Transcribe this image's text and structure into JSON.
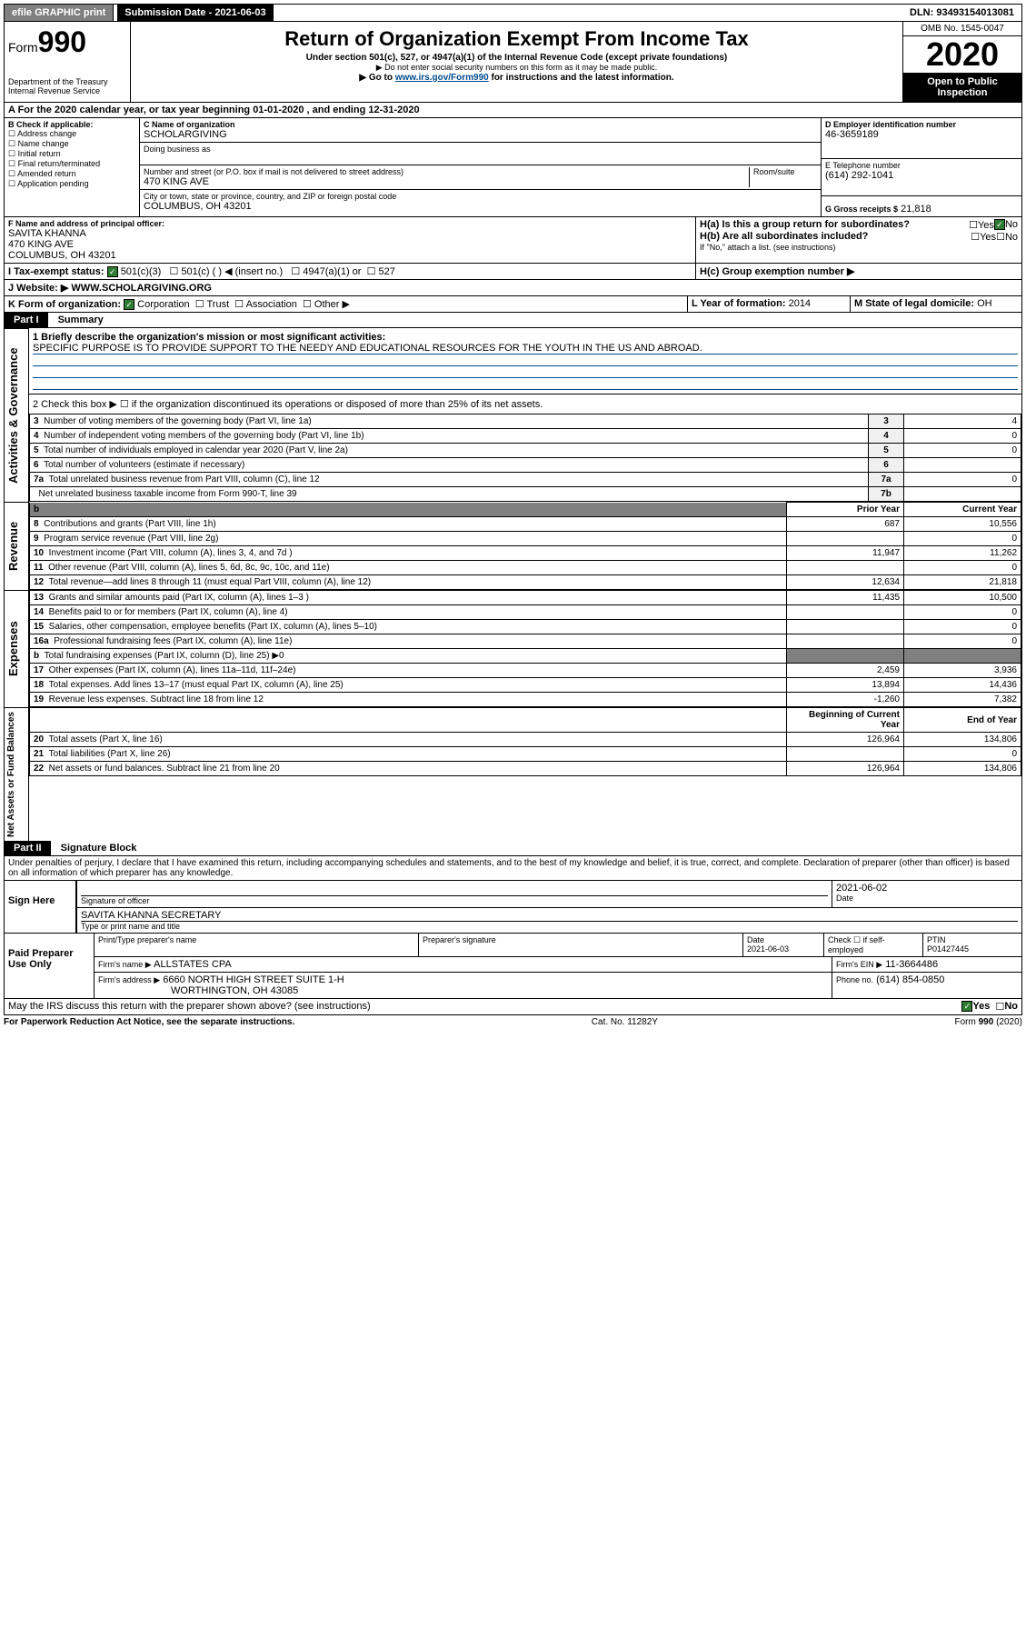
{
  "topbar": {
    "efile": "efile GRAPHIC print",
    "sub_label": "Submission Date - 2021-06-03",
    "dln": "DLN: 93493154013081"
  },
  "header": {
    "form_label": "Form",
    "form_num": "990",
    "dept": "Department of the Treasury Internal Revenue Service",
    "title": "Return of Organization Exempt From Income Tax",
    "sub1": "Under section 501(c), 527, or 4947(a)(1) of the Internal Revenue Code (except private foundations)",
    "sub2": "▶ Do not enter social security numbers on this form as it may be made public.",
    "sub3_pre": "▶ Go to ",
    "sub3_link": "www.irs.gov/Form990",
    "sub3_post": " for instructions and the latest information.",
    "omb": "OMB No. 1545-0047",
    "year": "2020",
    "open": "Open to Public Inspection"
  },
  "a_line": "A For the 2020 calendar year, or tax year beginning 01-01-2020    , and ending 12-31-2020",
  "b": {
    "label": "B Check if applicable:",
    "opts": [
      "Address change",
      "Name change",
      "Initial return",
      "Final return/terminated",
      "Amended return",
      "Application pending"
    ]
  },
  "c": {
    "name_label": "C Name of organization",
    "name": "SCHOLARGIVING",
    "dba_label": "Doing business as",
    "addr_label": "Number and street (or P.O. box if mail is not delivered to street address)",
    "room_label": "Room/suite",
    "addr": "470 KING AVE",
    "city_label": "City or town, state or province, country, and ZIP or foreign postal code",
    "city": "COLUMBUS, OH  43201"
  },
  "d": {
    "label": "D Employer identification number",
    "val": "46-3659189"
  },
  "e": {
    "label": "E Telephone number",
    "val": "(614) 292-1041"
  },
  "g": {
    "label": "G Gross receipts $",
    "val": "21,818"
  },
  "f": {
    "label": "F  Name and address of principal officer:",
    "name": "SAVITA KHANNA",
    "addr1": "470 KING AVE",
    "addr2": "COLUMBUS, OH  43201"
  },
  "h": {
    "a_label": "H(a)  Is this a group return for subordinates?",
    "b_label": "H(b)  Are all subordinates included?",
    "note": "If \"No,\" attach a list. (see instructions)",
    "c_label": "H(c)  Group exemption number ▶",
    "yes": "Yes",
    "no": "No"
  },
  "i": {
    "label": "I  Tax-exempt status:",
    "o1": "501(c)(3)",
    "o2": "501(c) (   ) ◀ (insert no.)",
    "o3": "4947(a)(1) or",
    "o4": "527"
  },
  "j": {
    "label": "J   Website: ▶",
    "val": "WWW.SCHOLARGIVING.ORG"
  },
  "k": {
    "label": "K Form of organization:",
    "opts": [
      "Corporation",
      "Trust",
      "Association",
      "Other ▶"
    ]
  },
  "l": {
    "label": "L Year of formation:",
    "val": "2014"
  },
  "m": {
    "label": "M State of legal domicile:",
    "val": "OH"
  },
  "part1": {
    "label": "Part I",
    "title": "Summary"
  },
  "summary": {
    "q1": "1  Briefly describe the organization's mission or most significant activities:",
    "q1_ans": "SPECIFIC PURPOSE IS TO PROVIDE SUPPORT TO THE NEEDY AND EDUCATIONAL RESOURCES FOR THE YOUTH IN THE US AND ABROAD.",
    "q2": "2  Check this box ▶ ☐  if the organization discontinued its operations or disposed of more than 25% of its net assets.",
    "rows_gov": [
      {
        "n": "3",
        "desc": "Number of voting members of the governing body (Part VI, line 1a)",
        "k": "3",
        "v": "4"
      },
      {
        "n": "4",
        "desc": "Number of independent voting members of the governing body (Part VI, line 1b)",
        "k": "4",
        "v": "0"
      },
      {
        "n": "5",
        "desc": "Total number of individuals employed in calendar year 2020 (Part V, line 2a)",
        "k": "5",
        "v": "0"
      },
      {
        "n": "6",
        "desc": "Total number of volunteers (estimate if necessary)",
        "k": "6",
        "v": ""
      },
      {
        "n": "7a",
        "desc": "Total unrelated business revenue from Part VIII, column (C), line 12",
        "k": "7a",
        "v": "0"
      },
      {
        "n": "",
        "desc": "Net unrelated business taxable income from Form 990-T, line 39",
        "k": "7b",
        "v": ""
      }
    ],
    "hdr_prior": "Prior Year",
    "hdr_curr": "Current Year",
    "rows_rev": [
      {
        "n": "8",
        "desc": "Contributions and grants (Part VIII, line 1h)",
        "p": "687",
        "c": "10,556"
      },
      {
        "n": "9",
        "desc": "Program service revenue (Part VIII, line 2g)",
        "p": "",
        "c": "0"
      },
      {
        "n": "10",
        "desc": "Investment income (Part VIII, column (A), lines 3, 4, and 7d )",
        "p": "11,947",
        "c": "11,262"
      },
      {
        "n": "11",
        "desc": "Other revenue (Part VIII, column (A), lines 5, 6d, 8c, 9c, 10c, and 11e)",
        "p": "",
        "c": "0"
      },
      {
        "n": "12",
        "desc": "Total revenue—add lines 8 through 11 (must equal Part VIII, column (A), line 12)",
        "p": "12,634",
        "c": "21,818"
      }
    ],
    "rows_exp": [
      {
        "n": "13",
        "desc": "Grants and similar amounts paid (Part IX, column (A), lines 1–3 )",
        "p": "11,435",
        "c": "10,500"
      },
      {
        "n": "14",
        "desc": "Benefits paid to or for members (Part IX, column (A), line 4)",
        "p": "",
        "c": "0"
      },
      {
        "n": "15",
        "desc": "Salaries, other compensation, employee benefits (Part IX, column (A), lines 5–10)",
        "p": "",
        "c": "0"
      },
      {
        "n": "16a",
        "desc": "Professional fundraising fees (Part IX, column (A), line 11e)",
        "p": "",
        "c": "0"
      },
      {
        "n": "b",
        "desc": "Total fundraising expenses (Part IX, column (D), line 25) ▶0",
        "p": "—",
        "c": "—"
      },
      {
        "n": "17",
        "desc": "Other expenses (Part IX, column (A), lines 11a–11d, 11f–24e)",
        "p": "2,459",
        "c": "3,936"
      },
      {
        "n": "18",
        "desc": "Total expenses. Add lines 13–17 (must equal Part IX, column (A), line 25)",
        "p": "13,894",
        "c": "14,436"
      },
      {
        "n": "19",
        "desc": "Revenue less expenses. Subtract line 18 from line 12",
        "p": "-1,260",
        "c": "7,382"
      }
    ],
    "hdr_begin": "Beginning of Current Year",
    "hdr_end": "End of Year",
    "rows_net": [
      {
        "n": "20",
        "desc": "Total assets (Part X, line 16)",
        "p": "126,964",
        "c": "134,806"
      },
      {
        "n": "21",
        "desc": "Total liabilities (Part X, line 26)",
        "p": "",
        "c": "0"
      },
      {
        "n": "22",
        "desc": "Net assets or fund balances. Subtract line 21 from line 20",
        "p": "126,964",
        "c": "134,806"
      }
    ]
  },
  "vert": {
    "gov": "Activities & Governance",
    "rev": "Revenue",
    "exp": "Expenses",
    "net": "Net Assets or Fund Balances"
  },
  "part2": {
    "label": "Part II",
    "title": "Signature Block",
    "decl": "Under penalties of perjury, I declare that I have examined this return, including accompanying schedules and statements, and to the best of my knowledge and belief, it is true, correct, and complete. Declaration of preparer (other than officer) is based on all information of which preparer has any knowledge."
  },
  "sign": {
    "here": "Sign Here",
    "sig_label": "Signature of officer",
    "date": "2021-06-02",
    "date_label": "Date",
    "name": "SAVITA KHANNA  SECRETARY",
    "name_label": "Type or print name and title"
  },
  "paid": {
    "label": "Paid Preparer Use Only",
    "h1": "Print/Type preparer's name",
    "h2": "Preparer's signature",
    "h3": "Date",
    "h3v": "2021-06-03",
    "h4": "Check ☐ if self-employed",
    "h5": "PTIN",
    "h5v": "P01427445",
    "firm_label": "Firm's name    ▶",
    "firm": "ALLSTATES CPA",
    "ein_label": "Firm's EIN ▶",
    "ein": "11-3664486",
    "addr_label": "Firm's address ▶",
    "addr1": "6660 NORTH HIGH STREET SUITE 1-H",
    "addr2": "WORTHINGTON, OH  43085",
    "phone_label": "Phone no.",
    "phone": "(614) 854-0850"
  },
  "footer": {
    "discuss": "May the IRS discuss this return with the preparer shown above? (see instructions)",
    "yes": "Yes",
    "no": "No",
    "pra": "For Paperwork Reduction Act Notice, see the separate instructions.",
    "cat": "Cat. No. 11282Y",
    "form": "Form 990 (2020)"
  }
}
